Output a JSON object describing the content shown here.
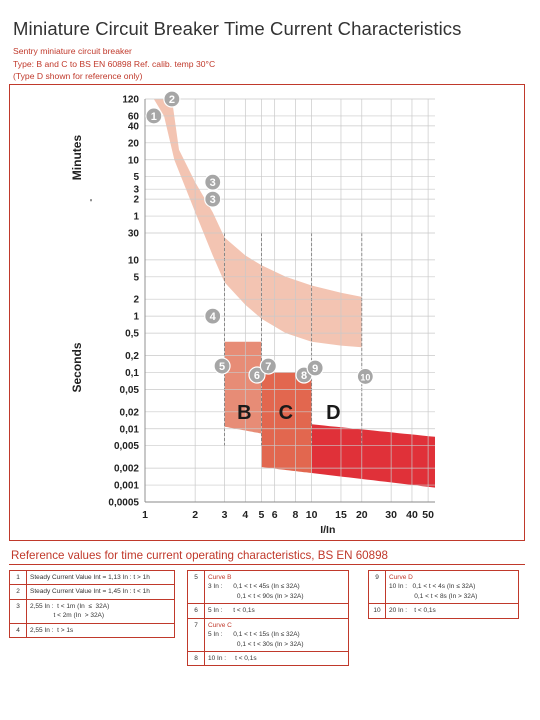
{
  "header": {
    "title": "Miniature Circuit Breaker Time Current Characteristics",
    "subtitle_lines": [
      "Sentry miniature circuit breaker",
      "Type: B and C to BS EN 60898 Ref. calib. temp 30°C",
      "(Type D shown for reference only)"
    ]
  },
  "chart_data": {
    "type": "area",
    "xlabel": "I/In",
    "ylabel_minutes": "Minutes",
    "ylabel_seconds": "Seconds",
    "x_ticks": [
      1,
      2,
      3,
      4,
      5,
      6,
      8,
      10,
      15,
      20,
      30,
      40,
      50
    ],
    "y_ticks_minutes": [
      "120",
      "60",
      "40",
      "20",
      "10",
      "5",
      "3",
      "2",
      "1"
    ],
    "y_ticks_seconds": [
      "30",
      "10",
      "5",
      "2",
      "1",
      "0,5",
      "0,2",
      "0,1",
      "0,05",
      "0,02",
      "0,01",
      "0,005",
      "0,002",
      "0,001",
      "0,0005"
    ],
    "xlim": [
      1,
      55
    ],
    "ylim_seconds": [
      0.0005,
      7200
    ],
    "grid": true,
    "bands": [
      {
        "name": "B",
        "x_from": 3,
        "x_to": 5,
        "color": "#e5826a"
      },
      {
        "name": "C",
        "x_from": 5,
        "x_to": 10,
        "color": "#e05a40"
      },
      {
        "name": "D",
        "x_from": 10,
        "x_to": 55,
        "color": "#dd1f28"
      }
    ],
    "thermal_region": {
      "color": "#f3c4b2",
      "lower_curve": [
        [
          1.45,
          7200
        ],
        [
          1.6,
          900
        ],
        [
          2,
          240
        ],
        [
          2.55,
          70
        ],
        [
          3,
          25
        ],
        [
          4,
          12
        ],
        [
          5,
          8
        ],
        [
          7,
          5
        ],
        [
          10,
          3.5
        ],
        [
          15,
          2.6
        ],
        [
          20,
          2.2
        ]
      ],
      "upper_curve": [
        [
          1.13,
          7200
        ],
        [
          1.3,
          3600
        ],
        [
          1.5,
          600
        ],
        [
          2,
          70
        ],
        [
          2.55,
          12
        ],
        [
          3,
          4
        ],
        [
          4,
          1.6
        ],
        [
          5,
          0.9
        ],
        [
          7,
          0.5
        ],
        [
          10,
          0.35
        ],
        [
          15,
          0.3
        ],
        [
          20,
          0.28
        ]
      ]
    },
    "markers": [
      {
        "label": "1",
        "x": 1.13,
        "y": 3600
      },
      {
        "label": "2",
        "x": 1.45,
        "y": 7200
      },
      {
        "label": "3",
        "x": 2.55,
        "y": 240
      },
      {
        "label": "3",
        "x": 2.55,
        "y": 120
      },
      {
        "label": "4",
        "x": 2.55,
        "y": 1
      },
      {
        "label": "5",
        "x": 2.9,
        "y": 0.13
      },
      {
        "label": "6",
        "x": 4.7,
        "y": 0.09
      },
      {
        "label": "7",
        "x": 5.5,
        "y": 0.13
      },
      {
        "label": "8",
        "x": 9,
        "y": 0.09
      },
      {
        "label": "9",
        "x": 10.5,
        "y": 0.12
      },
      {
        "label": "10",
        "x": 21,
        "y": 0.085
      }
    ]
  },
  "reference": {
    "title": "Reference values for time current operating characteristics, BS EN 60898",
    "col1": [
      {
        "num": "1",
        "lines": [
          "Steady Current Value Int = 1,13 In : t > 1h"
        ]
      },
      {
        "num": "2",
        "lines": [
          "Steady Current Value Int = 1,45 In : t < 1h"
        ]
      },
      {
        "num": "3",
        "lines": [
          "2,55 In :  t < 1m (In  ≤  32A)",
          "             t < 2m (In  > 32A)"
        ]
      },
      {
        "num": "4",
        "lines": [
          "2,55 In :  t > 1s"
        ]
      }
    ],
    "col2": [
      {
        "num": "5",
        "name": "Curve B",
        "lines": [
          "3 In :      0,1 < t < 45s (In ≤ 32A)",
          "                0,1 < t < 90s (In > 32A)"
        ]
      },
      {
        "num": "6",
        "lines": [
          "5 In :      t < 0,1s"
        ]
      },
      {
        "num": "7",
        "name": "Curve C",
        "lines": [
          "5 In :      0,1 < t < 15s (In ≤ 32A)",
          "                0,1 < t < 30s (In > 32A)"
        ]
      },
      {
        "num": "8",
        "lines": [
          "10 In :     t < 0,1s"
        ]
      }
    ],
    "col3": [
      {
        "num": "9",
        "name": "Curve D",
        "lines": [
          "10 In :   0,1 < t < 4s (In ≤ 32A)",
          "              0,1 < t < 8s (In > 32A)"
        ]
      },
      {
        "num": "10",
        "lines": [
          "20 In :    t < 0,1s"
        ]
      }
    ]
  }
}
